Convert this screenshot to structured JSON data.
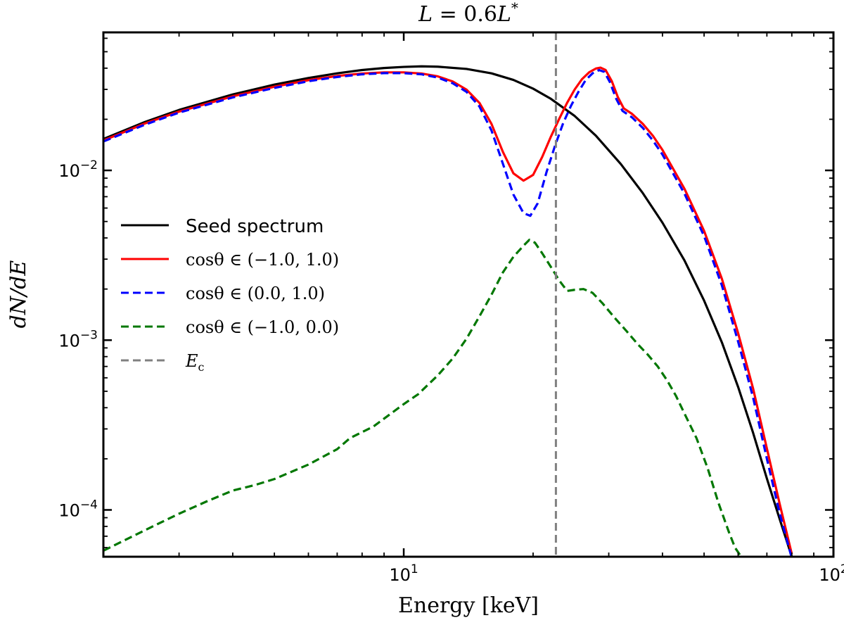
{
  "chart_data": {
    "type": "line",
    "title": "L = 0.6L *",
    "title_parts": {
      "L1": "L",
      "eq": " = 0.6",
      "L2": "L",
      "sup": "*"
    },
    "xlabel": "Energy [keV]",
    "ylabel": "dN/dE",
    "x_scale": "log",
    "y_scale": "log",
    "xlim": [
      2.0,
      100.0
    ],
    "ylim": [
      5.3e-05,
      0.065
    ],
    "grid": false,
    "legend_position": "center-left",
    "x_ticks": [
      {
        "value": 10,
        "base": "10",
        "exp": "1"
      },
      {
        "value": 100,
        "base": "10",
        "exp": "2"
      }
    ],
    "y_ticks": [
      {
        "value": 0.0001,
        "base": "10",
        "exp": "−4"
      },
      {
        "value": 0.001,
        "base": "10",
        "exp": "−3"
      },
      {
        "value": 0.01,
        "base": "10",
        "exp": "−2"
      }
    ],
    "series": [
      {
        "name": "Seed spectrum",
        "color": "#000000",
        "style": "solid",
        "points": [
          [
            2.0,
            0.0153
          ],
          [
            2.5,
            0.0193
          ],
          [
            3.0,
            0.0227
          ],
          [
            4.0,
            0.028
          ],
          [
            5.0,
            0.032
          ],
          [
            6.0,
            0.035
          ],
          [
            7.0,
            0.0373
          ],
          [
            8.0,
            0.039
          ],
          [
            9.0,
            0.0401
          ],
          [
            10.0,
            0.0407
          ],
          [
            11.0,
            0.041
          ],
          [
            12.0,
            0.0408
          ],
          [
            14.0,
            0.0396
          ],
          [
            16.0,
            0.0373
          ],
          [
            18.0,
            0.0341
          ],
          [
            20.0,
            0.0303
          ],
          [
            22.0,
            0.0264
          ],
          [
            25.0,
            0.0209
          ],
          [
            28.0,
            0.016
          ],
          [
            32.0,
            0.0109
          ],
          [
            36.0,
            0.00735
          ],
          [
            40.0,
            0.00492
          ],
          [
            45.0,
            0.00295
          ],
          [
            50.0,
            0.00171
          ],
          [
            55.0,
            0.00097
          ],
          [
            60.0,
            0.00053
          ],
          [
            65.0,
            0.000285
          ],
          [
            70.0,
            0.000153
          ],
          [
            75.0,
            8.8e-05
          ],
          [
            80.0,
            5.3e-05
          ]
        ]
      },
      {
        "name": "cosθ ∈ (−1.0, 1.0)",
        "color": "#ff0000",
        "style": "solid",
        "points": [
          [
            2.0,
            0.015
          ],
          [
            2.5,
            0.0189
          ],
          [
            3.0,
            0.0222
          ],
          [
            4.0,
            0.0273
          ],
          [
            5.0,
            0.0311
          ],
          [
            6.0,
            0.034
          ],
          [
            7.0,
            0.036
          ],
          [
            8.0,
            0.0372
          ],
          [
            9.0,
            0.0378
          ],
          [
            10.0,
            0.0378
          ],
          [
            11.0,
            0.0372
          ],
          [
            12.0,
            0.0358
          ],
          [
            13.0,
            0.0334
          ],
          [
            14.0,
            0.0299
          ],
          [
            15.0,
            0.025
          ],
          [
            16.0,
            0.0188
          ],
          [
            17.0,
            0.0129
          ],
          [
            18.0,
            0.0096
          ],
          [
            19.0,
            0.0087
          ],
          [
            20.0,
            0.0094
          ],
          [
            21.0,
            0.012
          ],
          [
            22.0,
            0.0158
          ],
          [
            23.0,
            0.0201
          ],
          [
            24.0,
            0.025
          ],
          [
            25.0,
            0.03
          ],
          [
            26.0,
            0.0345
          ],
          [
            27.0,
            0.0378
          ],
          [
            28.0,
            0.0398
          ],
          [
            28.7,
            0.0403
          ],
          [
            29.5,
            0.039
          ],
          [
            30.5,
            0.0335
          ],
          [
            31.5,
            0.027
          ],
          [
            32.5,
            0.0232
          ],
          [
            34.0,
            0.0215
          ],
          [
            36.0,
            0.0188
          ],
          [
            38.0,
            0.016
          ],
          [
            40.0,
            0.0132
          ],
          [
            45.0,
            0.0078
          ],
          [
            50.0,
            0.0044
          ],
          [
            55.0,
            0.0023
          ],
          [
            60.0,
            0.0011
          ],
          [
            65.0,
            0.00052
          ],
          [
            70.0,
            0.00023
          ],
          [
            75.0,
            0.000108
          ],
          [
            80.0,
            5.5e-05
          ]
        ]
      },
      {
        "name": "cosθ ∈ (0.0, 1.0)",
        "color": "#0000ff",
        "style": "dashed",
        "points": [
          [
            2.0,
            0.0148
          ],
          [
            2.5,
            0.0186
          ],
          [
            3.0,
            0.0219
          ],
          [
            4.0,
            0.0269
          ],
          [
            5.0,
            0.0306
          ],
          [
            6.0,
            0.0335
          ],
          [
            7.0,
            0.0355
          ],
          [
            8.0,
            0.0368
          ],
          [
            9.0,
            0.0374
          ],
          [
            10.0,
            0.0374
          ],
          [
            11.0,
            0.0368
          ],
          [
            12.0,
            0.0352
          ],
          [
            13.0,
            0.0326
          ],
          [
            14.0,
            0.029
          ],
          [
            15.0,
            0.0238
          ],
          [
            16.0,
            0.0172
          ],
          [
            17.0,
            0.011
          ],
          [
            18.0,
            0.0072
          ],
          [
            19.0,
            0.0056
          ],
          [
            19.7,
            0.0054
          ],
          [
            20.5,
            0.0064
          ],
          [
            21.5,
            0.0098
          ],
          [
            22.5,
            0.014
          ],
          [
            23.5,
            0.019
          ],
          [
            24.5,
            0.024
          ],
          [
            25.5,
            0.029
          ],
          [
            26.5,
            0.034
          ],
          [
            27.5,
            0.0373
          ],
          [
            28.5,
            0.039
          ],
          [
            29.3,
            0.038
          ],
          [
            30.2,
            0.033
          ],
          [
            31.2,
            0.0265
          ],
          [
            32.3,
            0.0224
          ],
          [
            34.0,
            0.0205
          ],
          [
            36.0,
            0.0178
          ],
          [
            38.0,
            0.015
          ],
          [
            40.0,
            0.0124
          ],
          [
            45.0,
            0.0073
          ],
          [
            50.0,
            0.0041
          ],
          [
            55.0,
            0.0021
          ],
          [
            60.0,
            0.00098
          ],
          [
            65.0,
            0.00046
          ],
          [
            70.0,
            0.0002
          ],
          [
            75.0,
            9.5e-05
          ],
          [
            80.0,
            5.2e-05
          ]
        ]
      },
      {
        "name": "cosθ ∈ (−1.0, 0.0)",
        "color": "#007700",
        "style": "dashed",
        "points": [
          [
            2.0,
            5.75e-05
          ],
          [
            2.5,
            7.6e-05
          ],
          [
            3.0,
            9.5e-05
          ],
          [
            3.5,
            0.000113
          ],
          [
            4.0,
            0.00013
          ],
          [
            4.5,
            0.00014
          ],
          [
            5.0,
            0.000152
          ],
          [
            6.0,
            0.000185
          ],
          [
            7.0,
            0.000228
          ],
          [
            7.5,
            0.000265
          ],
          [
            8.5,
            0.00031
          ],
          [
            10.0,
            0.00042
          ],
          [
            10.8,
            0.00048
          ],
          [
            12.0,
            0.00062
          ],
          [
            13.0,
            0.00078
          ],
          [
            14.0,
            0.00102
          ],
          [
            15.0,
            0.00138
          ],
          [
            16.0,
            0.00185
          ],
          [
            17.0,
            0.0025
          ],
          [
            18.0,
            0.0031
          ],
          [
            19.0,
            0.0036
          ],
          [
            19.6,
            0.0039
          ],
          [
            20.2,
            0.00375
          ],
          [
            21.0,
            0.00325
          ],
          [
            22.0,
            0.0027
          ],
          [
            23.0,
            0.00225
          ],
          [
            24.0,
            0.00195
          ],
          [
            25.0,
            0.00198
          ],
          [
            26.2,
            0.002
          ],
          [
            27.5,
            0.0019
          ],
          [
            29.0,
            0.00165
          ],
          [
            31.0,
            0.00135
          ],
          [
            33.0,
            0.00113
          ],
          [
            35.0,
            0.00095
          ],
          [
            37.0,
            0.00082
          ],
          [
            39.0,
            0.0007
          ],
          [
            41.0,
            0.00058
          ],
          [
            43.0,
            0.00047
          ],
          [
            45.0,
            0.00037
          ],
          [
            48.0,
            0.000265
          ],
          [
            51.0,
            0.000175
          ],
          [
            54.0,
            0.00011
          ],
          [
            57.0,
            7.5e-05
          ],
          [
            59.0,
            6e-05
          ],
          [
            61.0,
            5.3e-05
          ]
        ]
      },
      {
        "name": "Ec",
        "name_parts": {
          "base": "E",
          "sub": "c"
        },
        "color": "#808080",
        "style": "dashed",
        "vertical_line_x": 22.6
      }
    ]
  }
}
